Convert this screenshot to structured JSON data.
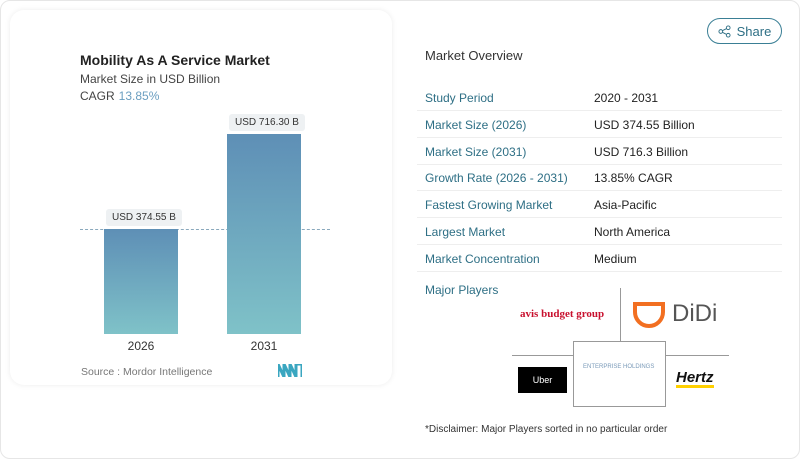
{
  "chart_data": {
    "type": "bar",
    "title": "Mobility As A Service Market",
    "subtitle": "Market Size in USD Billion",
    "cagr_label": "CAGR",
    "cagr_value": "13.85%",
    "categories": [
      "2026",
      "2031"
    ],
    "values": [
      374.55,
      716.3
    ],
    "data_labels": [
      "USD 374.55 B",
      "USD 716.30 B"
    ],
    "ylim": [
      0,
      716.3
    ],
    "grid": false,
    "colors": {
      "top": "#5e8fb6",
      "bottom": "#7fc2c8"
    }
  },
  "source": "Source :  Mordor Intelligence",
  "share_label": "Share",
  "overview": {
    "title": "Market Overview",
    "rows": [
      {
        "k": "Study Period",
        "v": "2020 - 2031"
      },
      {
        "k": "Market Size (2026)",
        "v": "USD 374.55 Billion"
      },
      {
        "k": "Market Size (2031)",
        "v": "USD 716.3 Billion"
      },
      {
        "k": "Growth Rate (2026 - 2031)",
        "v": "13.85% CAGR"
      },
      {
        "k": "Fastest Growing Market",
        "v": "Asia-Pacific"
      },
      {
        "k": "Largest Market",
        "v": "North America"
      },
      {
        "k": "Market Concentration",
        "v": "Medium"
      }
    ]
  },
  "major_players": {
    "title": "Major Players",
    "logos": [
      "avis budget group",
      "DiDi",
      "Uber",
      "ENTERPRISE HOLDINGS",
      "Hertz"
    ]
  },
  "disclaimer": "*Disclaimer: Major Players sorted in no particular order"
}
